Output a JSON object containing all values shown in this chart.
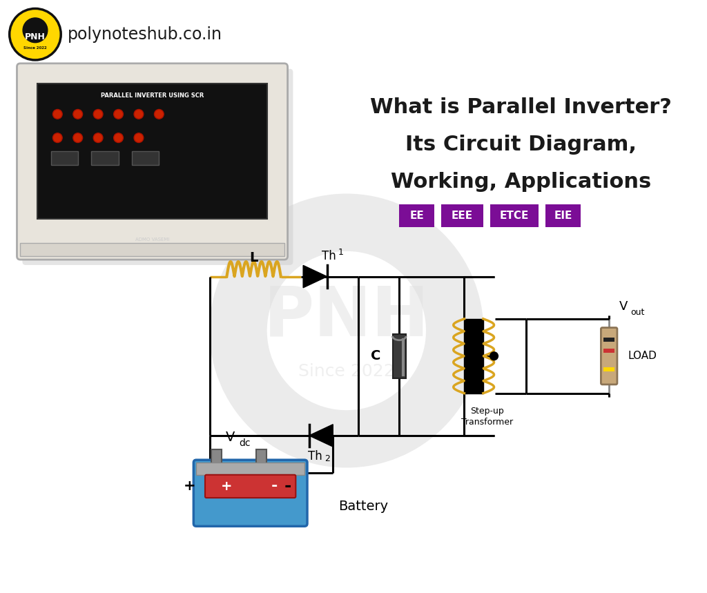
{
  "title_line1": "What is Parallel Inverter?",
  "title_line2": "Its Circuit Diagram,",
  "title_line3": "Working, Applications",
  "website": "polynoteshub.co.in",
  "tags": [
    "EE",
    "EEE",
    "ETCE",
    "EIE"
  ],
  "tag_color": "#7B0D96",
  "tag_text_color": "#ffffff",
  "background_color": "#ffffff",
  "title_color": "#1a1a1a",
  "circuit_line_color": "#000000",
  "inductor_color": "#DAA520",
  "transformer_color": "#DAA520",
  "battery_blue": "#4499CC",
  "battery_red": "#CC3333",
  "battery_gray": "#999999",
  "capacitor_dark": "#444444",
  "capacitor_light": "#999999",
  "logo_yellow": "#FFD700",
  "logo_black": "#111111",
  "watermark_color": "#e8e8e8",
  "circuit_bg": "#f0ede8",
  "box_color": "#cccccc",
  "box_face": "#e8e5e0",
  "panel_black": "#1a1a1a",
  "knob_red": "#CC2200",
  "knob_orange": "#FF6600"
}
